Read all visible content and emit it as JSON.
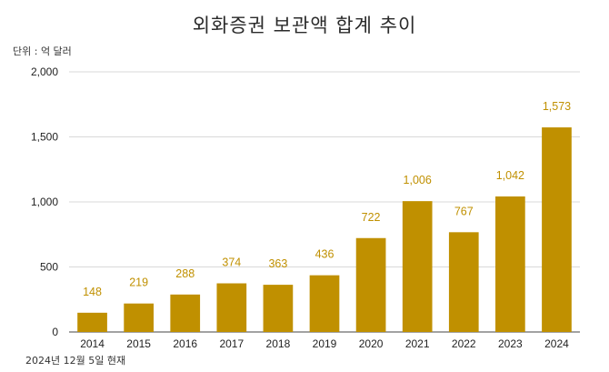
{
  "chart_data": {
    "type": "bar",
    "title": "외화증권 보관액 합계 추이",
    "unit_note": "단위 : 억 달러",
    "footnote": "2024년 12월 5일 현재",
    "categories": [
      "2014",
      "2015",
      "2016",
      "2017",
      "2018",
      "2019",
      "2020",
      "2021",
      "2022",
      "2023",
      "2024"
    ],
    "values": [
      148,
      219,
      288,
      374,
      363,
      436,
      722,
      1006,
      767,
      1042,
      1573
    ],
    "data_labels": [
      "148",
      "219",
      "288",
      "374",
      "363",
      "436",
      "722",
      "1,006",
      "767",
      "1,042",
      "1,573"
    ],
    "yticks": [
      0,
      500,
      1000,
      1500,
      2000
    ],
    "ytick_labels": [
      "0",
      "500",
      "1,000",
      "1,500",
      "2,000"
    ],
    "ylim": [
      0,
      2000
    ],
    "grid": true,
    "legend": "none",
    "bar_color": "#C09000",
    "label_color": "#C09000",
    "grid_color": "#d9d9d9"
  }
}
